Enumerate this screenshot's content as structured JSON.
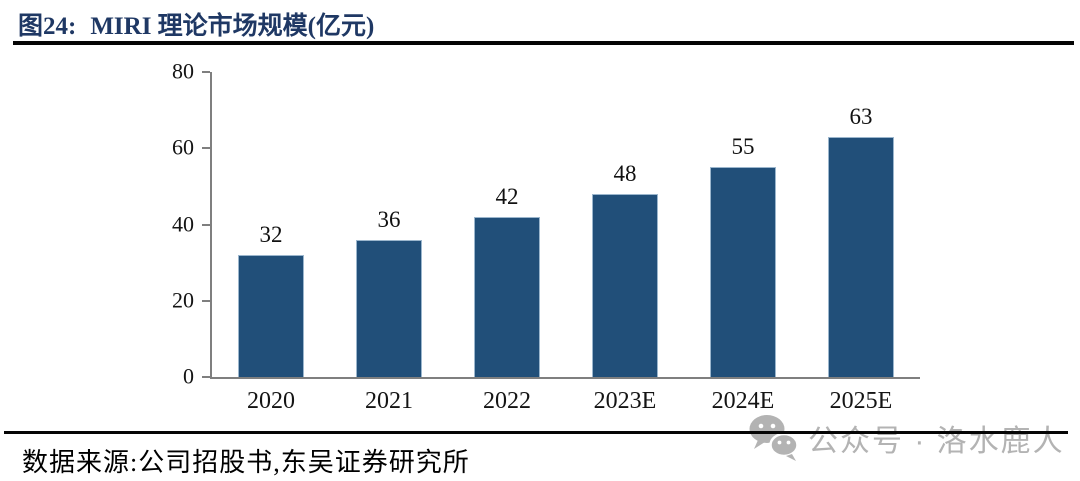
{
  "header": {
    "figure_label": "图24:",
    "title": "MIRI 理论市场规模(亿元)",
    "title_color": "#1F3864"
  },
  "chart_data": {
    "type": "bar",
    "title": "MIRI 理论市场规模(亿元)",
    "categories": [
      "2020",
      "2021",
      "2022",
      "2023E",
      "2024E",
      "2025E"
    ],
    "values": [
      32,
      36,
      42,
      48,
      55,
      63
    ],
    "xlabel": "",
    "ylabel": "",
    "ylim": [
      0,
      80
    ],
    "yticks": [
      0,
      20,
      40,
      60,
      80
    ],
    "grid": false,
    "legend": false,
    "data_labels": true,
    "bar_color": "#214F79",
    "bar_border_color": "#9bb6cd",
    "axis_color": "#7f7f7f"
  },
  "footer": {
    "source": "数据来源:公司招股书,东吴证券研究所"
  },
  "watermark": {
    "icon": "wechat-icon",
    "text": "公众号 · 洛水鹿人",
    "color": "#b3b3b3"
  }
}
